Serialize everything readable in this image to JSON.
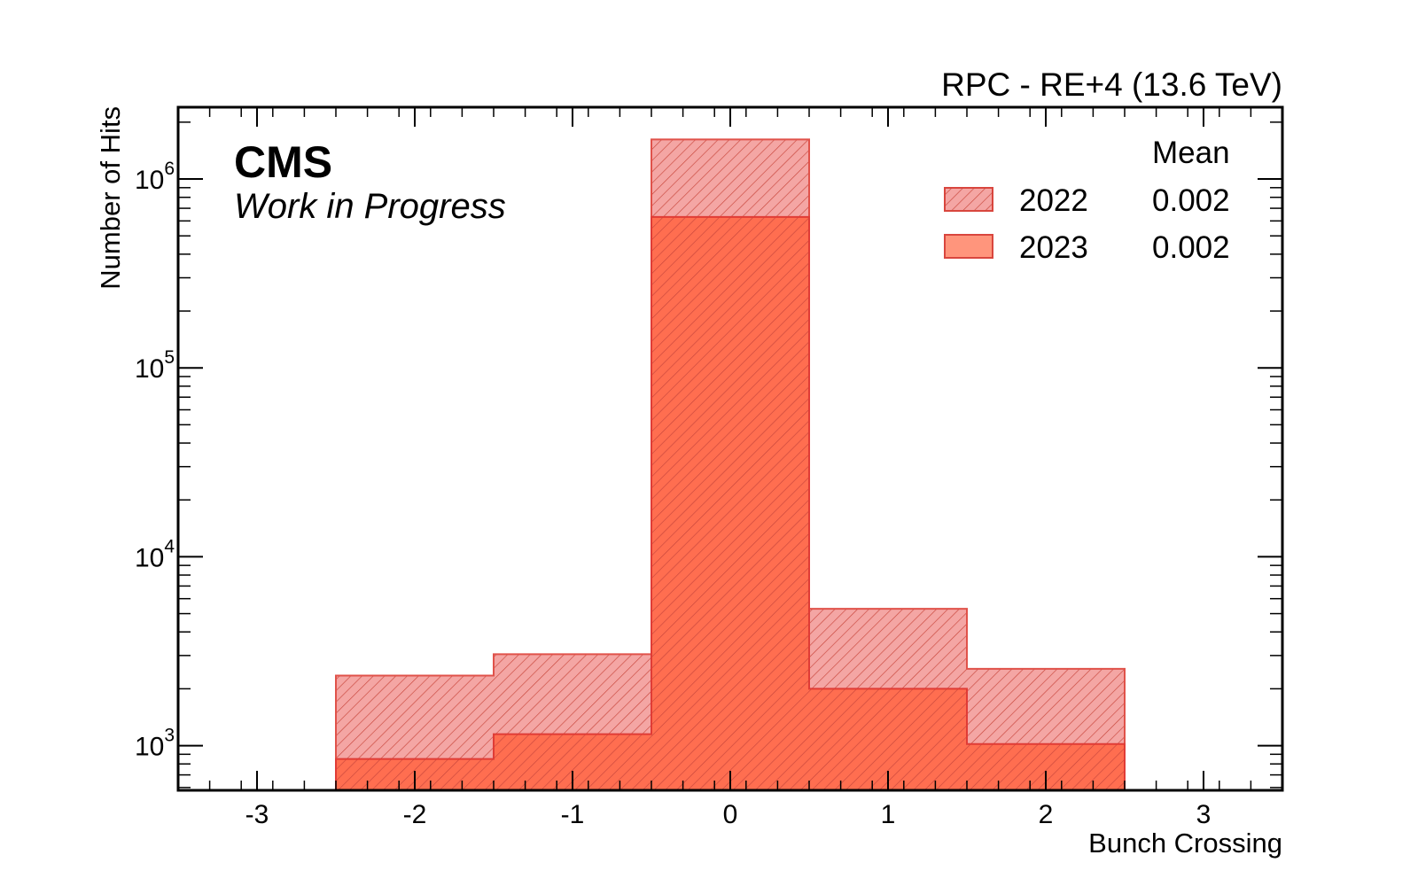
{
  "chart_data": {
    "type": "bar",
    "title": "RPC - RE+4 (13.6 TeV)",
    "experiment": "CMS",
    "status_label": "Work in Progress",
    "xlabel": "Bunch Crossing",
    "ylabel": "Number of Hits",
    "xlim": [
      -3.5,
      3.5
    ],
    "ylim": [
      580,
      2400000
    ],
    "yscale": "log",
    "bin_edges": [
      -2.5,
      -1.5,
      -0.5,
      0.5,
      1.5,
      2.5
    ],
    "x_ticks": [
      "-3",
      "-2",
      "-1",
      "0",
      "1",
      "2",
      "3"
    ],
    "y_ticks": [
      {
        "base": "10",
        "exp": "3"
      },
      {
        "base": "10",
        "exp": "4"
      },
      {
        "base": "10",
        "exp": "5"
      },
      {
        "base": "10",
        "exp": "6"
      }
    ],
    "legend_position": "top-right",
    "legend_header": "Mean",
    "grid": false,
    "series": [
      {
        "name": "2022",
        "mean": "0.002",
        "values": [
          2350,
          3050,
          1620000,
          5300,
          2550
        ],
        "color": "#f08c8c",
        "style": "hatched"
      },
      {
        "name": "2023",
        "mean": "0.002",
        "values": [
          850,
          1150,
          630000,
          2000,
          1020
        ],
        "color": "#ff7355",
        "style": "filled"
      }
    ]
  }
}
